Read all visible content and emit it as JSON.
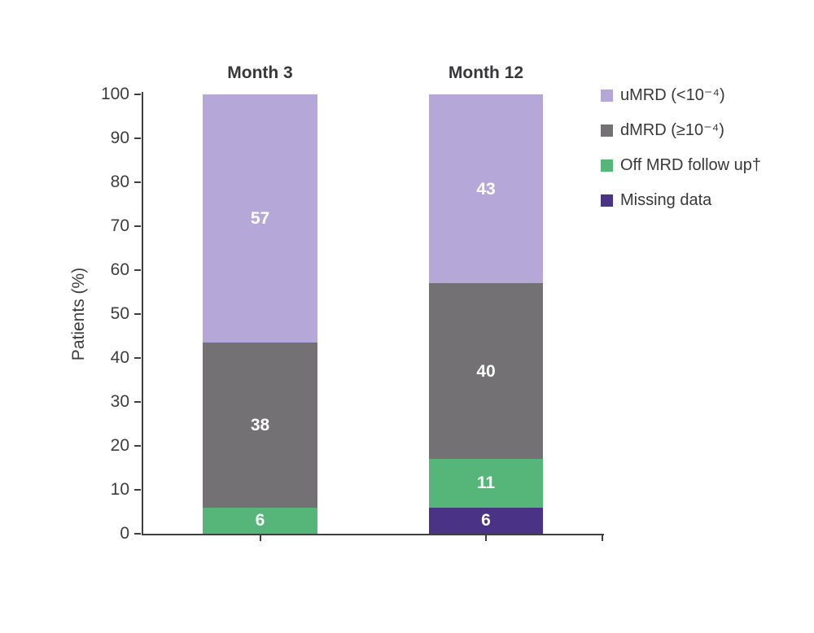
{
  "chart_data": {
    "type": "bar",
    "stacked": true,
    "ylabel": "Patients (%)",
    "ylim": [
      0,
      100
    ],
    "ytick_step": 10,
    "yticks": [
      0,
      10,
      20,
      30,
      40,
      50,
      60,
      70,
      80,
      90,
      100
    ],
    "categories": [
      "Month 3",
      "Month 12"
    ],
    "series": [
      {
        "name": "uMRD (<10⁻⁴)",
        "color": "#b5a8d8",
        "values": [
          57,
          43
        ]
      },
      {
        "name": "dMRD (≥10⁻⁴)",
        "color": "#737173",
        "values": [
          38,
          40
        ]
      },
      {
        "name": "Off MRD follow up†",
        "color": "#56b578",
        "values": [
          6,
          11
        ]
      },
      {
        "name": "Missing data",
        "color": "#4a3384",
        "values": [
          0,
          6
        ]
      }
    ],
    "value_label_color": "#ffffff",
    "legend_position": "right",
    "grid": false
  },
  "style": {
    "axis_color": "#3f3e40",
    "text_color": "#3d3c3e",
    "background": "#ffffff"
  }
}
